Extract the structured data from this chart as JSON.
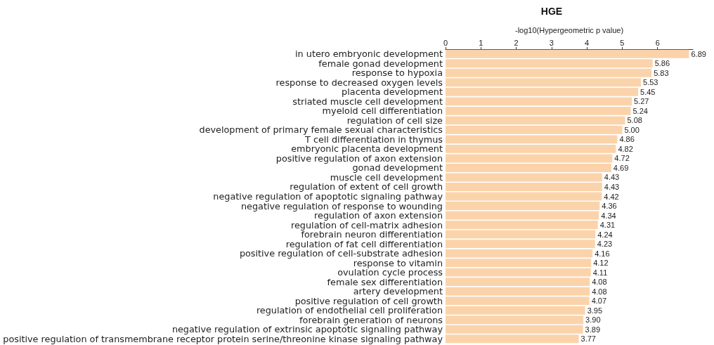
{
  "chart_data": {
    "type": "bar",
    "orientation": "horizontal",
    "title": "HGE",
    "xlabel": "-log10(Hypergeometric p value)",
    "categories": [
      "in utero embryonic development",
      "female gonad development",
      "response to hypoxia",
      "response to decreased oxygen levels",
      "placenta development",
      "striated muscle cell development",
      "myeloid cell differentiation",
      "regulation of cell size",
      "development of primary female sexual characteristics",
      "T cell differentiation in thymus",
      "embryonic placenta development",
      "positive regulation of axon extension",
      "gonad development",
      "muscle cell development",
      "regulation of extent of cell growth",
      "negative regulation of apoptotic signaling pathway",
      "negative regulation of response to wounding",
      "regulation of axon extension",
      "regulation of cell-matrix adhesion",
      "forebrain neuron differentiation",
      "regulation of fat cell differentiation",
      "positive regulation of cell-substrate adhesion",
      "response to vitamin",
      "ovulation cycle process",
      "female sex differentiation",
      "artery development",
      "positive regulation of cell growth",
      "regulation of endothelial cell proliferation",
      "forebrain generation of neurons",
      "negative regulation of extrinsic apoptotic signaling pathway",
      "positive regulation of transmembrane receptor protein serine/threonine kinase signaling pathway"
    ],
    "values": [
      6.89,
      5.86,
      5.83,
      5.53,
      5.45,
      5.27,
      5.24,
      5.08,
      5.0,
      4.86,
      4.82,
      4.72,
      4.69,
      4.43,
      4.43,
      4.42,
      4.36,
      4.34,
      4.31,
      4.24,
      4.23,
      4.16,
      4.12,
      4.11,
      4.08,
      4.08,
      4.07,
      3.95,
      3.9,
      3.89,
      3.77
    ],
    "value_labels": [
      "6.89",
      "5.86",
      "5.83",
      "5.53",
      "5.45",
      "5.27",
      "5.24",
      "5.08",
      "5.00",
      "4.86",
      "4.82",
      "4.72",
      "4.69",
      "4.43",
      "4.43",
      "4.42",
      "4.36",
      "4.34",
      "4.31",
      "4.24",
      "4.23",
      "4.16",
      "4.12",
      "4.11",
      "4.08",
      "4.08",
      "4.07",
      "3.95",
      "3.90",
      "3.89",
      "3.77"
    ],
    "color": "#fbd3ab",
    "xlim": [
      0,
      7
    ],
    "xticks": [
      0,
      1,
      2,
      3,
      4,
      5,
      6
    ],
    "grid": false
  }
}
